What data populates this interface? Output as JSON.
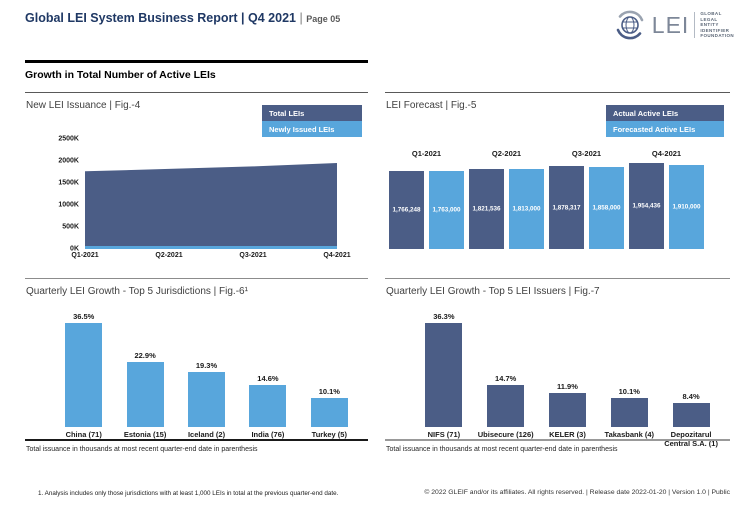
{
  "header": {
    "title": "Global LEI System Business Report",
    "sep": "|",
    "period": "Q4 2021",
    "page": "Page 05"
  },
  "logo": {
    "text": "LEI",
    "subtext_lines": [
      "GLOBAL",
      "LEGAL",
      "ENTITY",
      "IDENTIFIER",
      "FOUNDATION"
    ]
  },
  "section_title": "Growth in Total Number of Active LEIs",
  "colors": {
    "navy": "#1f3864",
    "dark_blue": "#4b5d86",
    "light_blue": "#58a6dc",
    "rule_dark": "#1a1a1a",
    "rule_gray": "#999999"
  },
  "footnote": "1. Analysis includes only those jurisdictions with at least 1,000 LEIs in total at the previous quarter-end date.",
  "footer": "© 2022 GLEIF and/or its affiliates. All rights reserved. | Release date 2022-01-20 | Version 1.0 | Public",
  "chart_data": [
    {
      "id": "fig4",
      "type": "area",
      "title": "New LEI Issuance | Fig.-4",
      "legend": [
        {
          "label": "Total LEIs",
          "color": "#4b5d86"
        },
        {
          "label": "Newly Issued LEIs",
          "color": "#58a6dc"
        }
      ],
      "x": [
        "Q1-2021",
        "Q2-2021",
        "Q3-2021",
        "Q4-2021"
      ],
      "series": [
        {
          "name": "Total LEIs",
          "values": [
            1766248,
            1821536,
            1878317,
            1954436
          ]
        },
        {
          "name": "Newly Issued LEIs",
          "values": [
            50000,
            50000,
            50000,
            50000
          ],
          "approximate": true
        }
      ],
      "yticks": [
        "0K",
        "500K",
        "1000K",
        "1500K",
        "2000K",
        "2500K"
      ],
      "ylim": [
        0,
        2500000
      ],
      "grid": false,
      "legend_position": "top-right"
    },
    {
      "id": "fig5",
      "type": "bar",
      "title": "LEI Forecast | Fig.-5",
      "legend": [
        {
          "label": "Actual Active LEIs",
          "color": "#4b5d86"
        },
        {
          "label": "Forecasted Active LEIs",
          "color": "#58a6dc"
        }
      ],
      "categories": [
        "Q1-2021",
        "Q2-2021",
        "Q3-2021",
        "Q4-2021"
      ],
      "series": [
        {
          "name": "Actual Active LEIs",
          "values": [
            1766248,
            1821536,
            1878317,
            1954436
          ],
          "labels": [
            "1,766,248",
            "1,821,536",
            "1,878,317",
            "1,954,436"
          ]
        },
        {
          "name": "Forecasted Active LEIs",
          "values": [
            1763000,
            1813000,
            1858000,
            1910000
          ],
          "labels": [
            "1,763,000",
            "1,813,000",
            "1,858,000",
            "1,910,000"
          ]
        }
      ],
      "category_labels_above_bars": true,
      "value_labels_inside_bars": true,
      "legend_position": "top-right"
    },
    {
      "id": "fig6",
      "type": "bar",
      "title": "Quarterly LEI Growth - Top 5 Jurisdictions | Fig.-6¹",
      "categories": [
        "China (71)",
        "Estonia (15)",
        "Iceland (2)",
        "India (76)",
        "Turkey (5)"
      ],
      "values": [
        36.5,
        22.9,
        19.3,
        14.6,
        10.1
      ],
      "labels": [
        "36.5%",
        "22.9%",
        "19.3%",
        "14.6%",
        "10.1%"
      ],
      "bar_color": "#58a6dc",
      "caption": "Total issuance in thousands at most recent quarter-end date in parenthesis"
    },
    {
      "id": "fig7",
      "type": "bar",
      "title": "Quarterly LEI Growth - Top 5 LEI Issuers | Fig.-7",
      "categories": [
        "NIFS (71)",
        "Ubisecure (126)",
        "KELER (3)",
        "Takasbank (4)",
        "Depozitarul Central S.A. (1)"
      ],
      "values": [
        36.3,
        14.7,
        11.9,
        10.1,
        8.4
      ],
      "labels": [
        "36.3%",
        "14.7%",
        "11.9%",
        "10.1%",
        "8.4%"
      ],
      "bar_color": "#4b5d86",
      "caption": "Total issuance in thousands at most recent quarter-end date in parenthesis"
    }
  ]
}
